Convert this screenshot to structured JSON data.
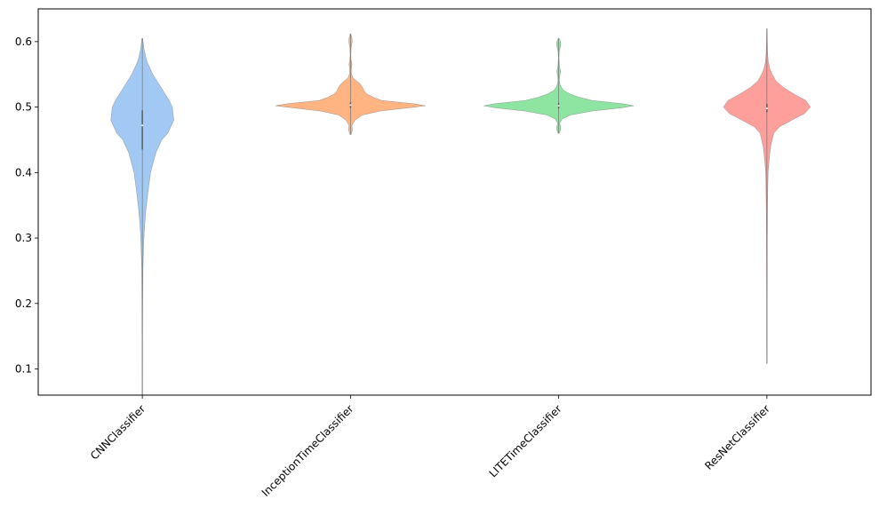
{
  "chart_data": {
    "type": "violin",
    "categories": [
      "CNNClassifier",
      "InceptionTimeClassifier",
      "LITETimeClassifier",
      "ResNetClassifier"
    ],
    "ylim": [
      0.06,
      0.65
    ],
    "yticks": [
      0.1,
      0.2,
      0.3,
      0.4,
      0.5,
      0.6
    ],
    "ytick_labels": [
      "0.1",
      "0.2",
      "0.3",
      "0.4",
      "0.5",
      "0.6"
    ],
    "title": "",
    "xlabel": "",
    "ylabel": "",
    "grid": false,
    "series": [
      {
        "category": "CNNClassifier",
        "color": "#a1c9f4",
        "min": 0.06,
        "max": 0.605,
        "q1": 0.435,
        "median": 0.472,
        "q3": 0.495,
        "density": [
          [
            0.06,
            0.003
          ],
          [
            0.15,
            0.004
          ],
          [
            0.2,
            0.005
          ],
          [
            0.25,
            0.008
          ],
          [
            0.28,
            0.014
          ],
          [
            0.31,
            0.025
          ],
          [
            0.34,
            0.045
          ],
          [
            0.37,
            0.075
          ],
          [
            0.4,
            0.11
          ],
          [
            0.43,
            0.18
          ],
          [
            0.45,
            0.26
          ],
          [
            0.46,
            0.34
          ],
          [
            0.48,
            0.42
          ],
          [
            0.5,
            0.4
          ],
          [
            0.51,
            0.36
          ],
          [
            0.53,
            0.25
          ],
          [
            0.55,
            0.14
          ],
          [
            0.57,
            0.06
          ],
          [
            0.59,
            0.02
          ],
          [
            0.605,
            0.005
          ]
        ]
      },
      {
        "category": "InceptionTimeClassifier",
        "color": "#ffb482",
        "min": 0.458,
        "max": 0.612,
        "q1": 0.499,
        "median": 0.503,
        "q3": 0.507,
        "density": [
          [
            0.458,
            0.008
          ],
          [
            0.465,
            0.025
          ],
          [
            0.472,
            0.02
          ],
          [
            0.48,
            0.06
          ],
          [
            0.488,
            0.16
          ],
          [
            0.494,
            0.4
          ],
          [
            0.499,
            0.78
          ],
          [
            0.502,
            1.0
          ],
          [
            0.505,
            0.85
          ],
          [
            0.51,
            0.42
          ],
          [
            0.515,
            0.3
          ],
          [
            0.52,
            0.22
          ],
          [
            0.525,
            0.18
          ],
          [
            0.53,
            0.16
          ],
          [
            0.535,
            0.13
          ],
          [
            0.54,
            0.08
          ],
          [
            0.545,
            0.03
          ],
          [
            0.552,
            0.01
          ],
          [
            0.56,
            0.012
          ],
          [
            0.565,
            0.02
          ],
          [
            0.572,
            0.008
          ],
          [
            0.58,
            0.004
          ],
          [
            0.59,
            0.008
          ],
          [
            0.6,
            0.022
          ],
          [
            0.605,
            0.02
          ],
          [
            0.612,
            0.004
          ]
        ]
      },
      {
        "category": "LITETimeClassifier",
        "color": "#8de5a1",
        "min": 0.46,
        "max": 0.605,
        "q1": 0.498,
        "median": 0.502,
        "q3": 0.506,
        "density": [
          [
            0.46,
            0.008
          ],
          [
            0.465,
            0.025
          ],
          [
            0.47,
            0.028
          ],
          [
            0.475,
            0.012
          ],
          [
            0.482,
            0.05
          ],
          [
            0.488,
            0.16
          ],
          [
            0.494,
            0.45
          ],
          [
            0.499,
            0.85
          ],
          [
            0.502,
            1.0
          ],
          [
            0.505,
            0.86
          ],
          [
            0.51,
            0.45
          ],
          [
            0.515,
            0.27
          ],
          [
            0.52,
            0.15
          ],
          [
            0.525,
            0.07
          ],
          [
            0.53,
            0.035
          ],
          [
            0.535,
            0.015
          ],
          [
            0.542,
            0.008
          ],
          [
            0.548,
            0.016
          ],
          [
            0.555,
            0.025
          ],
          [
            0.562,
            0.01
          ],
          [
            0.575,
            0.004
          ],
          [
            0.585,
            0.008
          ],
          [
            0.595,
            0.028
          ],
          [
            0.6,
            0.025
          ],
          [
            0.605,
            0.006
          ]
        ]
      },
      {
        "category": "ResNetClassifier",
        "color": "#ff9f9b",
        "min": 0.108,
        "max": 0.62,
        "q1": 0.492,
        "median": 0.498,
        "q3": 0.505,
        "density": [
          [
            0.108,
            0.003
          ],
          [
            0.15,
            0.004
          ],
          [
            0.2,
            0.004
          ],
          [
            0.25,
            0.005
          ],
          [
            0.3,
            0.006
          ],
          [
            0.34,
            0.008
          ],
          [
            0.38,
            0.012
          ],
          [
            0.4,
            0.016
          ],
          [
            0.42,
            0.03
          ],
          [
            0.44,
            0.05
          ],
          [
            0.46,
            0.09
          ],
          [
            0.47,
            0.17
          ],
          [
            0.48,
            0.33
          ],
          [
            0.49,
            0.5
          ],
          [
            0.5,
            0.58
          ],
          [
            0.51,
            0.52
          ],
          [
            0.52,
            0.36
          ],
          [
            0.53,
            0.22
          ],
          [
            0.54,
            0.12
          ],
          [
            0.55,
            0.07
          ],
          [
            0.56,
            0.035
          ],
          [
            0.57,
            0.018
          ],
          [
            0.58,
            0.01
          ],
          [
            0.6,
            0.006
          ],
          [
            0.62,
            0.003
          ]
        ]
      }
    ]
  }
}
